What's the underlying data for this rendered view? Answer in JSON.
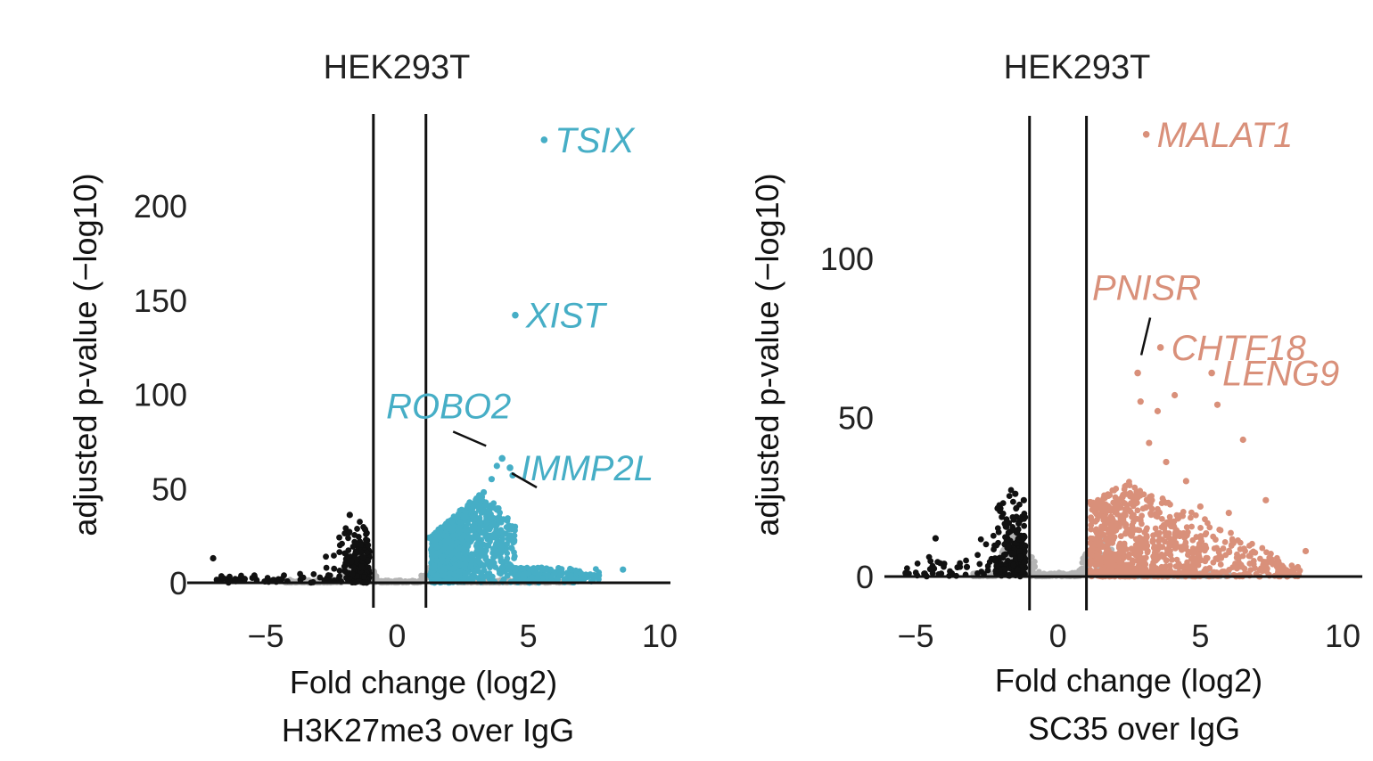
{
  "colors": {
    "up_left": "#46aec6",
    "up_right": "#d9907a",
    "down": "#111111",
    "ns": "#b4b4b4"
  },
  "chart_data": [
    {
      "type": "scatter",
      "title": "HEK293T",
      "xlabel_line1": "Fold change (log2)",
      "xlabel_line2": "H3K27me3 over IgG",
      "ylabel": "adjusted p-value (−log10)",
      "xlim": [
        -7.5,
        10.5
      ],
      "ylim": [
        -12,
        245
      ],
      "xticks": [
        -5,
        0,
        5,
        10
      ],
      "xtick_labels": [
        "−5",
        "0",
        "5",
        "10"
      ],
      "yticks": [
        0,
        50,
        100,
        150,
        200
      ],
      "ytick_labels": [
        "0",
        "50",
        "100",
        "150",
        "200"
      ],
      "vlines": [
        -0.9,
        1.1
      ],
      "labeled_genes": [
        {
          "name": "TSIX",
          "x": 5.6,
          "y": 235,
          "label_pos": "right"
        },
        {
          "name": "XIST",
          "x": 4.5,
          "y": 142,
          "label_pos": "right"
        },
        {
          "name": "ROBO2",
          "x": 4.0,
          "y": 66,
          "label_pos": "above-left"
        },
        {
          "name": "IMMP2L",
          "x": 4.3,
          "y": 61,
          "label_pos": "right"
        }
      ],
      "summary": {
        "up_x_range": [
          1.1,
          8.6
        ],
        "up_y_max": 70,
        "down_x_range": [
          -7.0,
          -0.9
        ],
        "down_y_max": 36
      }
    },
    {
      "type": "scatter",
      "title": "HEK293T",
      "xlabel_line1": "Fold change (log2)",
      "xlabel_line2": "SC35 over IgG",
      "ylabel": "adjusted p-value (−log10)",
      "xlim": [
        -6.0,
        10.5
      ],
      "ylim": [
        -8,
        140
      ],
      "xticks": [
        -5,
        0,
        5,
        10
      ],
      "xtick_labels": [
        "−5",
        "0",
        "5",
        "10"
      ],
      "yticks": [
        0,
        50,
        100
      ],
      "ytick_labels": [
        "0",
        "50",
        "100"
      ],
      "vlines": [
        -1.0,
        1.0
      ],
      "labeled_genes": [
        {
          "name": "MALAT1",
          "x": 3.1,
          "y": 139,
          "label_pos": "right"
        },
        {
          "name": "PNISR",
          "x": 2.8,
          "y": 64,
          "label_pos": "above"
        },
        {
          "name": "CHTF18",
          "x": 3.6,
          "y": 72,
          "label_pos": "right"
        },
        {
          "name": "LENG9",
          "x": 5.4,
          "y": 64,
          "label_pos": "right"
        }
      ],
      "summary": {
        "up_x_range": [
          1.0,
          8.7
        ],
        "up_y_max": 62,
        "down_x_range": [
          -5.5,
          -1.0
        ],
        "down_y_max": 28
      }
    }
  ]
}
